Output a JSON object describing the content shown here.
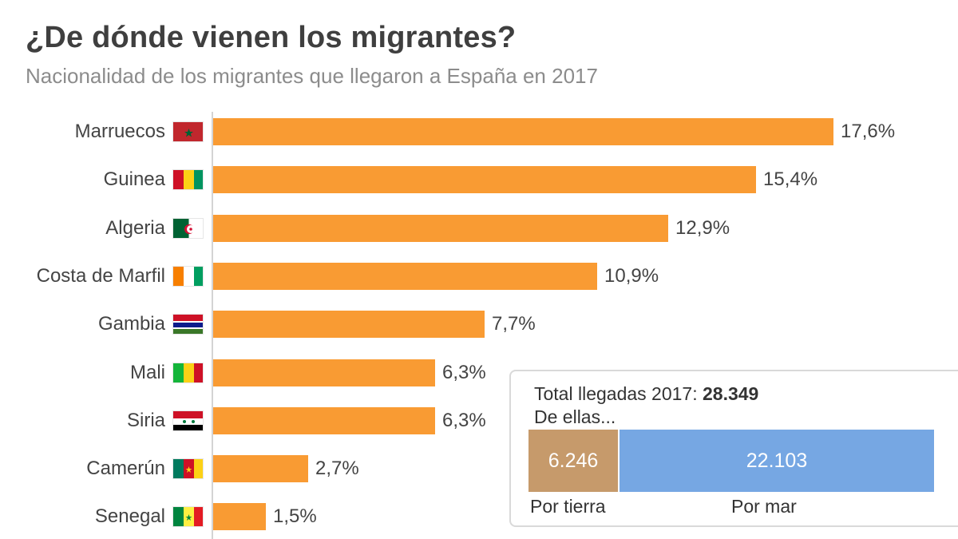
{
  "chart_data": {
    "type": "bar",
    "orientation": "horizontal",
    "title": "¿De dónde vienen los migrantes?",
    "subtitle": "Nacionalidad de los migrantes que llegaron a España en 2017",
    "categories": [
      "Marruecos",
      "Guinea",
      "Algeria",
      "Costa de Marfil",
      "Gambia",
      "Mali",
      "Siria",
      "Camerún",
      "Senegal"
    ],
    "values": [
      17.6,
      15.4,
      12.9,
      10.9,
      7.7,
      6.3,
      6.3,
      2.7,
      1.5
    ],
    "value_labels": [
      "17,6%",
      "15,4%",
      "12,9%",
      "10,9%",
      "7,7%",
      "6,3%",
      "6,3%",
      "2,7%",
      "1,5%"
    ],
    "unit": "%",
    "xlim": [
      0,
      18
    ],
    "bar_color": "#f99b33",
    "flags": [
      "morocco-flag-icon",
      "guinea-flag-icon",
      "algeria-flag-icon",
      "ivory-coast-flag-icon",
      "gambia-flag-icon",
      "mali-flag-icon",
      "syria-flag-icon",
      "cameroon-flag-icon",
      "senegal-flag-icon"
    ]
  },
  "summary": {
    "total_label": "Total llegadas 2017: ",
    "total_value": "28.349",
    "sub_label": "De ellas...",
    "land_value": "6.246",
    "sea_value": "22.103",
    "land_number": 6246,
    "sea_number": 22103,
    "land_label": "Por tierra",
    "sea_label": "Por mar",
    "land_color": "#c69a6b",
    "sea_color": "#76a7e3"
  }
}
